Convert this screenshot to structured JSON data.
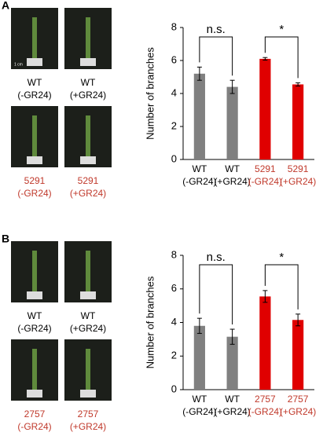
{
  "panels": [
    {
      "letter": "A",
      "scale_text": "1 cm",
      "photo_labels": [
        [
          "WT",
          "(-GR24)"
        ],
        [
          "WT",
          "(+GR24)"
        ],
        [
          "5291",
          "(-GR24)"
        ],
        [
          "5291",
          "(+GR24)"
        ]
      ]
    },
    {
      "letter": "B",
      "photo_labels": [
        [
          "WT",
          "(-GR24)"
        ],
        [
          "WT",
          "(+GR24)"
        ],
        [
          "2757",
          "(-GR24)"
        ],
        [
          "2757",
          "(+GR24)"
        ]
      ]
    }
  ],
  "chart_data": [
    {
      "type": "bar",
      "y_label": "Number of branches",
      "categories": [
        [
          "WT",
          "(-GR24)"
        ],
        [
          "WT",
          "(+GR24)"
        ],
        [
          "5291",
          "(-GR24)"
        ],
        [
          "5291",
          "(+GR24)"
        ]
      ],
      "category_label_colors": [
        "#000000",
        "#000000",
        "#c0392b",
        "#c0392b"
      ],
      "values": [
        5.2,
        4.4,
        6.1,
        4.55
      ],
      "errors": [
        0.4,
        0.4,
        0.08,
        0.1
      ],
      "colors": [
        "#808080",
        "#808080",
        "#e00000",
        "#e00000"
      ],
      "ylim": [
        0,
        8
      ],
      "yticks": [
        0,
        2,
        4,
        6,
        8
      ],
      "annotations": [
        {
          "text": "n.s.",
          "from": 0,
          "to": 1
        },
        {
          "text": "*",
          "from": 2,
          "to": 3
        }
      ]
    },
    {
      "type": "bar",
      "y_label": "Number of branches",
      "categories": [
        [
          "WT",
          "(-GR24)"
        ],
        [
          "WT",
          "(+GR24)"
        ],
        [
          "2757",
          "(-GR24)"
        ],
        [
          "2757",
          "(+GR24)"
        ]
      ],
      "category_label_colors": [
        "#000000",
        "#000000",
        "#c0392b",
        "#c0392b"
      ],
      "values": [
        3.8,
        3.15,
        5.55,
        4.15
      ],
      "errors": [
        0.45,
        0.45,
        0.35,
        0.35
      ],
      "colors": [
        "#808080",
        "#808080",
        "#e00000",
        "#e00000"
      ],
      "ylim": [
        0,
        8
      ],
      "yticks": [
        0,
        2,
        4,
        6,
        8
      ],
      "annotations": [
        {
          "text": "n.s.",
          "from": 0,
          "to": 1
        },
        {
          "text": "*",
          "from": 2,
          "to": 3
        }
      ]
    }
  ]
}
